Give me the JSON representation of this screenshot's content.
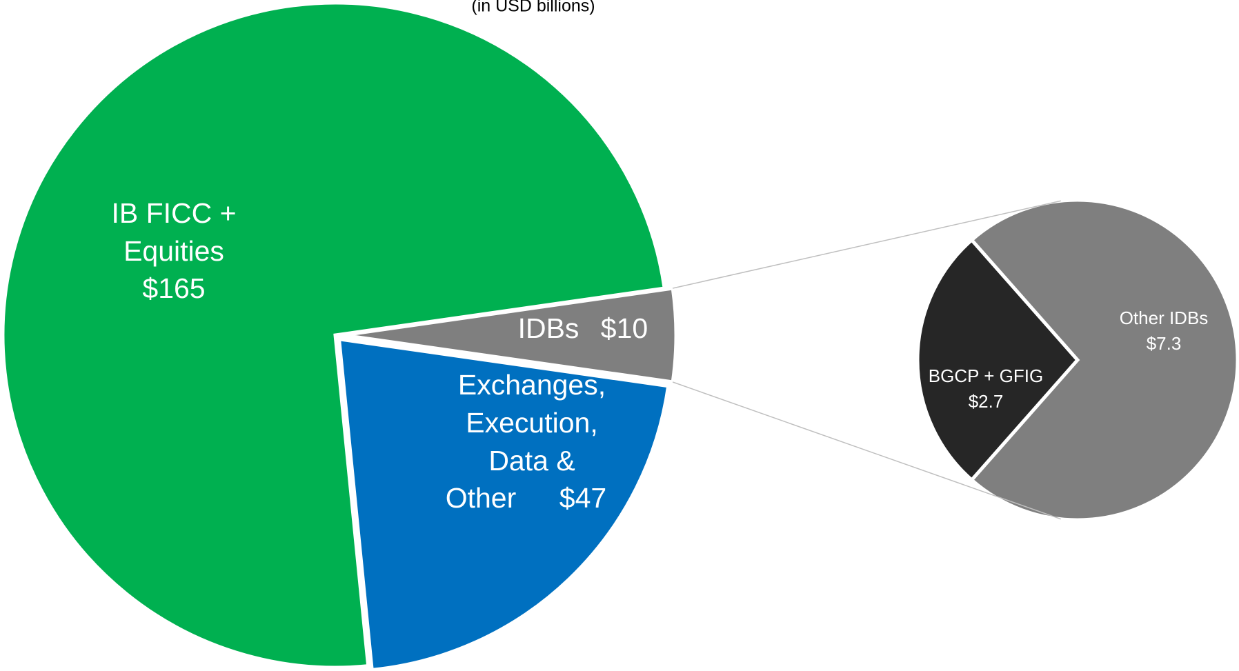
{
  "chart_data": {
    "type": "pie-of-pie",
    "subtitle": "(in USD billions)",
    "categories": [
      "IDBs",
      "Exchanges, Execution, Data & Other",
      "IB FICC + Equities"
    ],
    "values": [
      10,
      47,
      165
    ],
    "value_labels": [
      "$10",
      "$47",
      "$165"
    ],
    "colors": [
      "#7f7f7f",
      "#0070c0",
      "#00b050"
    ],
    "sub_pie": {
      "categories": [
        "BGCP + GFIG",
        "Other IDBs"
      ],
      "values": [
        2.7,
        7.3
      ],
      "value_labels": [
        "$2.7",
        "$7.3"
      ],
      "colors": [
        "#262626",
        "#7f7f7f"
      ]
    }
  }
}
